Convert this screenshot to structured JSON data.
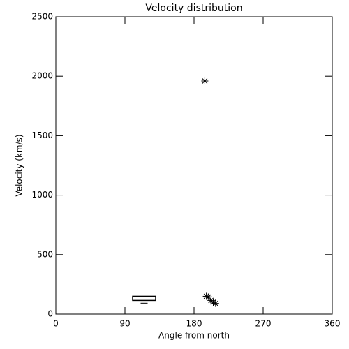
{
  "chart_data": {
    "type": "scatter",
    "title": "Velocity distribution",
    "x_label": "Angle from north",
    "y_label": "Velocity (km/s)",
    "x": [
      194,
      196,
      199,
      202,
      205,
      208
    ],
    "values": [
      1960,
      150,
      145,
      115,
      100,
      90
    ],
    "marker": "asterisk",
    "color": "#000000",
    "box": {
      "x_range": [
        100,
        130
      ],
      "low": 92,
      "q1": 115,
      "q3": 150
    },
    "xlim": [
      0,
      360
    ],
    "xticks": [
      0,
      90,
      180,
      270,
      360
    ],
    "ylim": [
      0,
      2500
    ],
    "yticks": [
      0,
      500,
      1000,
      1500,
      2000,
      2500
    ]
  }
}
